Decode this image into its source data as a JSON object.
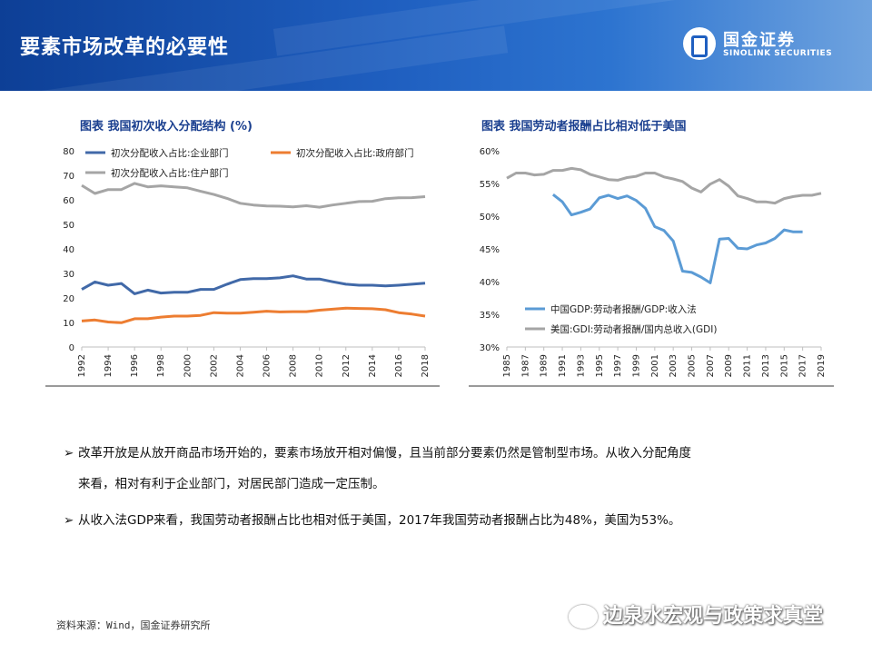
{
  "header": {
    "title": "要素市场改革的必要性"
  },
  "logo": {
    "cn": "国金证券",
    "en": "SINOLINK SECURITIES"
  },
  "chart_data": [
    {
      "type": "line",
      "title": "图表 我国初次收入分配结构 (%)",
      "x": [
        1992,
        1993,
        1994,
        1995,
        1996,
        1997,
        1998,
        1999,
        2000,
        2001,
        2002,
        2003,
        2004,
        2005,
        2006,
        2007,
        2008,
        2009,
        2010,
        2011,
        2012,
        2013,
        2014,
        2015,
        2016,
        2017,
        2018
      ],
      "x_ticks": [
        "1992",
        "1994",
        "1996",
        "1998",
        "2000",
        "2002",
        "2004",
        "2006",
        "2008",
        "2010",
        "2012",
        "2014",
        "2016",
        "2018"
      ],
      "y_ticks": [
        "0",
        "10",
        "20",
        "30",
        "40",
        "50",
        "60",
        "70",
        "80"
      ],
      "ylim": [
        0,
        80
      ],
      "legend": "top",
      "series": [
        {
          "name": "初次分配收入占比:企业部门",
          "color": "#4169a8",
          "values": [
            23.5,
            26.5,
            25.2,
            25.9,
            21.7,
            23.2,
            22.0,
            22.3,
            22.3,
            23.5,
            23.5,
            25.6,
            27.5,
            27.9,
            27.9,
            28.2,
            29.0,
            27.7,
            27.7,
            26.6,
            25.6,
            25.2,
            25.2,
            24.9,
            25.2,
            25.6,
            26.0
          ]
        },
        {
          "name": "初次分配收入占比:政府部门",
          "color": "#ed7d31",
          "values": [
            10.6,
            11.0,
            10.2,
            9.9,
            11.5,
            11.5,
            12.2,
            12.6,
            12.6,
            12.9,
            14.0,
            13.8,
            13.8,
            14.2,
            14.6,
            14.3,
            14.4,
            14.4,
            15.0,
            15.4,
            15.8,
            15.7,
            15.6,
            15.2,
            14.0,
            13.4,
            12.6
          ]
        },
        {
          "name": "初次分配收入占比:住户部门",
          "color": "#a5a5a5",
          "values": [
            65.9,
            62.6,
            64.2,
            64.2,
            66.7,
            65.3,
            65.7,
            65.3,
            64.9,
            63.5,
            62.2,
            60.6,
            58.6,
            57.9,
            57.5,
            57.4,
            57.1,
            57.6,
            57.0,
            57.9,
            58.6,
            59.3,
            59.4,
            60.5,
            60.8,
            60.9,
            61.3
          ]
        }
      ]
    },
    {
      "type": "line",
      "title": "图表 我国劳动者报酬占比相对低于美国",
      "x": [
        1985,
        1986,
        1987,
        1988,
        1989,
        1990,
        1991,
        1992,
        1993,
        1994,
        1995,
        1996,
        1997,
        1998,
        1999,
        2000,
        2001,
        2002,
        2003,
        2004,
        2005,
        2006,
        2007,
        2008,
        2009,
        2010,
        2011,
        2012,
        2013,
        2014,
        2015,
        2016,
        2017,
        2018,
        2019
      ],
      "x_ticks": [
        "1985",
        "1987",
        "1989",
        "1991",
        "1993",
        "1995",
        "1997",
        "1999",
        "2001",
        "2003",
        "2005",
        "2007",
        "2009",
        "2011",
        "2013",
        "2015",
        "2017",
        "2019"
      ],
      "y_ticks": [
        "30%",
        "35%",
        "40%",
        "45%",
        "50%",
        "55%",
        "60%"
      ],
      "ylim": [
        30,
        60
      ],
      "legend": "bottom-left",
      "series": [
        {
          "name": "中国GDP:劳动者报酬/GDP:收入法",
          "color": "#5b9bd5",
          "values": [
            null,
            null,
            null,
            null,
            null,
            53.3,
            52.2,
            50.2,
            50.6,
            51.1,
            52.8,
            53.2,
            52.7,
            53.1,
            52.4,
            51.2,
            48.4,
            47.8,
            46.2,
            41.6,
            41.4,
            40.7,
            39.8,
            46.5,
            46.6,
            45.1,
            45.0,
            45.6,
            45.9,
            46.6,
            47.9,
            47.6,
            47.6,
            null,
            null
          ]
        },
        {
          "name": "美国:GDI:劳动者报酬/国内总收入(GDI)",
          "color": "#a5a5a5",
          "values": [
            55.8,
            56.6,
            56.6,
            56.3,
            56.4,
            57.0,
            57.0,
            57.3,
            57.1,
            56.4,
            56.0,
            55.6,
            55.5,
            55.9,
            56.1,
            56.6,
            56.6,
            56.0,
            55.7,
            55.3,
            54.3,
            53.7,
            54.9,
            55.6,
            54.6,
            53.1,
            52.7,
            52.2,
            52.2,
            52.0,
            52.7,
            53.0,
            53.2,
            53.2,
            53.5
          ]
        }
      ]
    }
  ],
  "bullets": [
    {
      "marker": "➢",
      "line1": "改革开放是从放开商品市场开始的，要素市场放开相对偏慢，且当前部分要素仍然是管制型市场。从收入分配角度",
      "line2": "来看，相对有利于企业部门，对居民部门造成一定压制。"
    },
    {
      "marker": "➢",
      "line1": "从收入法GDP来看，我国劳动者报酬占比也相对低于美国，2017年我国劳动者报酬占比为48%，美国为53%。"
    }
  ],
  "source": "资料来源：Wind，国金证券研究所",
  "watermark": "边泉水宏观与政策求真堂"
}
